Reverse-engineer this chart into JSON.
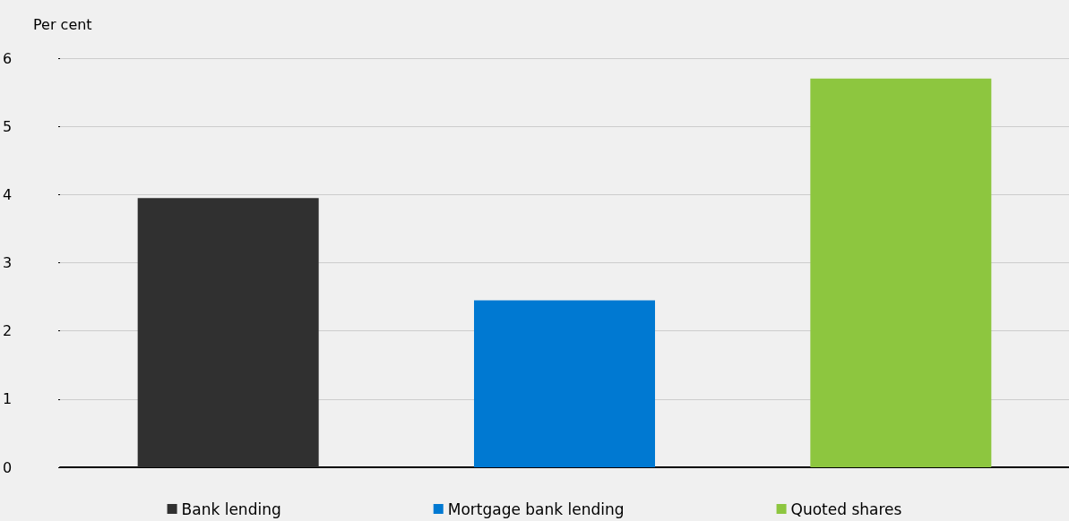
{
  "chart_data": {
    "type": "bar",
    "ylabel": "Per cent",
    "categories": [
      null,
      null,
      null
    ],
    "series": [
      {
        "name": "Bank lending",
        "color": "#303030",
        "values": [
          3.95,
          null,
          null
        ]
      },
      {
        "name": "Mortgage bank lending",
        "color": "#0079d2",
        "values": [
          null,
          2.45,
          null
        ]
      },
      {
        "name": "Quoted shares",
        "color": "#8dc63f",
        "values": [
          null,
          null,
          5.7
        ]
      }
    ],
    "ylim": [
      0,
      6
    ],
    "yticks": [
      0,
      1,
      2,
      3,
      4,
      5,
      6
    ],
    "grid": "y",
    "legend": "bottom"
  }
}
